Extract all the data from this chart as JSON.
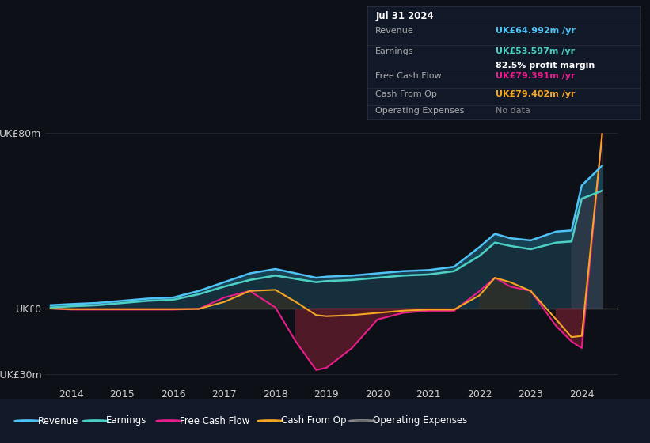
{
  "bg_color": "#0d1117",
  "panel_bg": "#111827",
  "chart_bg": "#0d1117",
  "grid_color": "#2a2d3a",
  "zero_line_color": "#cccccc",
  "title_date": "Jul 31 2024",
  "info": {
    "Revenue": {
      "value": "UK£64.992m /yr",
      "color": "#4fc3f7"
    },
    "Earnings": {
      "value": "UK£53.597m /yr",
      "color": "#4dd0c4"
    },
    "margin": "82.5% profit margin",
    "Free Cash Flow": {
      "value": "UK£79.391m /yr",
      "color": "#e91e8c"
    },
    "Cash From Op": {
      "value": "UK£79.402m /yr",
      "color": "#f5a623"
    },
    "Operating Expenses": {
      "value": "No data",
      "color": "#888888"
    }
  },
  "years": [
    2013.6,
    2014,
    2014.5,
    2015,
    2015.5,
    2016,
    2016.5,
    2017,
    2017.5,
    2018,
    2018.4,
    2018.8,
    2019,
    2019.5,
    2020,
    2020.5,
    2021,
    2021.5,
    2022,
    2022.3,
    2022.6,
    2023,
    2023.5,
    2023.8,
    2024,
    2024.4
  ],
  "revenue": [
    1.5,
    2.0,
    2.5,
    3.5,
    4.5,
    5.0,
    8.0,
    12.0,
    16.0,
    18.0,
    16.0,
    14.0,
    14.5,
    15.0,
    16.0,
    17.0,
    17.5,
    19.0,
    28.0,
    34.0,
    32.0,
    31.0,
    35.0,
    35.5,
    56.0,
    64.992
  ],
  "earnings": [
    0.5,
    1.0,
    1.5,
    2.5,
    3.5,
    4.0,
    6.5,
    10.0,
    13.0,
    15.0,
    13.5,
    12.0,
    12.5,
    13.0,
    14.0,
    15.0,
    15.5,
    17.0,
    24.0,
    30.0,
    28.5,
    27.0,
    30.0,
    30.5,
    50.0,
    53.597
  ],
  "free_cash_flow": [
    0.0,
    -0.5,
    -0.5,
    -0.5,
    -0.5,
    -0.5,
    -0.2,
    5.0,
    8.0,
    0.5,
    -15.0,
    -28.0,
    -27.0,
    -18.0,
    -5.0,
    -2.0,
    -1.0,
    -1.0,
    8.0,
    14.0,
    10.0,
    8.0,
    -8.0,
    -15.0,
    -18.0,
    79.391
  ],
  "cash_from_op": [
    0.0,
    -0.3,
    -0.3,
    -0.3,
    -0.3,
    -0.3,
    -0.2,
    3.0,
    8.0,
    8.5,
    3.0,
    -3.0,
    -3.5,
    -3.0,
    -2.0,
    -1.0,
    -0.5,
    -0.5,
    6.0,
    14.0,
    12.0,
    8.0,
    -5.0,
    -13.0,
    -12.5,
    79.402
  ],
  "ylim": [
    -35,
    90
  ],
  "yticks": [
    -30,
    0,
    80
  ],
  "ytick_labels": [
    "-UK£30m",
    "UK£0",
    "UK£80m"
  ],
  "xlim": [
    2013.5,
    2024.7
  ],
  "xticks": [
    2014,
    2015,
    2016,
    2017,
    2018,
    2019,
    2020,
    2021,
    2022,
    2023,
    2024
  ],
  "revenue_color": "#4fc3f7",
  "earnings_color": "#4dd0c4",
  "fcf_color": "#e91e8c",
  "cashop_color": "#f5a623",
  "fill_rev_earn_color": "#1a4a5e",
  "fill_earn_zero_color": "#1a3a4a",
  "fill_neg_color": "#5a1a2a",
  "fill_cashop_pos_color": "#3a3020",
  "fill_cashop_neg_color": "#4a2a15",
  "fill_forecast_color": "#444455",
  "label_color": "#aaaaaa",
  "divider_color": "#333344",
  "legend_items": [
    {
      "label": "Revenue",
      "color": "#4fc3f7",
      "filled": true
    },
    {
      "label": "Earnings",
      "color": "#4dd0c4",
      "filled": true
    },
    {
      "label": "Free Cash Flow",
      "color": "#e91e8c",
      "filled": true
    },
    {
      "label": "Cash From Op",
      "color": "#f5a623",
      "filled": true
    },
    {
      "label": "Operating Expenses",
      "color": "#888888",
      "filled": false
    }
  ]
}
